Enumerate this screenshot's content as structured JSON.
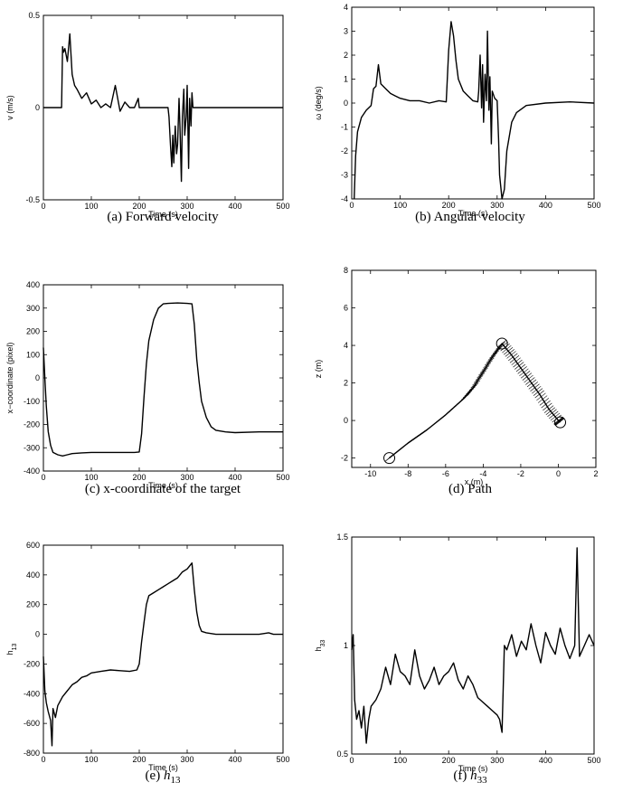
{
  "chart_data": [
    {
      "type": "line",
      "xlabel": "Time (s)",
      "ylabel": "v (m/s)",
      "xlim": [
        0,
        500
      ],
      "ylim": [
        -0.5,
        0.5
      ],
      "xticks": [
        0,
        100,
        200,
        300,
        400,
        500
      ],
      "yticks": [
        -0.5,
        0,
        0.5
      ],
      "x": [
        0,
        38,
        40,
        42,
        45,
        50,
        55,
        60,
        65,
        70,
        80,
        90,
        100,
        110,
        120,
        130,
        140,
        150,
        160,
        170,
        180,
        190,
        198,
        200,
        202,
        260,
        262,
        265,
        268,
        270,
        272,
        275,
        278,
        280,
        283,
        285,
        288,
        290,
        293,
        295,
        298,
        300,
        303,
        305,
        308,
        310,
        312,
        500
      ],
      "values": [
        0,
        0,
        0.33,
        0.3,
        0.32,
        0.25,
        0.4,
        0.18,
        0.12,
        0.1,
        0.05,
        0.08,
        0.02,
        0.04,
        0.0,
        0.02,
        0.0,
        0.12,
        -0.02,
        0.03,
        0.0,
        0.0,
        0.05,
        0.0,
        0,
        0,
        -0.05,
        -0.2,
        -0.32,
        -0.15,
        -0.3,
        -0.1,
        -0.25,
        -0.2,
        0.05,
        -0.1,
        -0.4,
        -0.05,
        0.1,
        -0.15,
        -0.05,
        0.12,
        -0.33,
        0.05,
        -0.1,
        0.08,
        0,
        0
      ],
      "caption": "(a) Forward velocity"
    },
    {
      "type": "line",
      "xlabel": "Time (s)",
      "ylabel": "ω (deg/s)",
      "xlim": [
        0,
        500
      ],
      "ylim": [
        -4,
        4
      ],
      "xticks": [
        0,
        100,
        200,
        300,
        400,
        500
      ],
      "yticks": [
        -4,
        -3,
        -2,
        -1,
        0,
        1,
        2,
        3,
        4
      ],
      "x": [
        5,
        8,
        12,
        20,
        30,
        40,
        45,
        50,
        55,
        60,
        70,
        80,
        90,
        100,
        120,
        140,
        160,
        180,
        195,
        200,
        205,
        210,
        215,
        220,
        230,
        240,
        250,
        260,
        262,
        265,
        268,
        270,
        272,
        275,
        278,
        280,
        283,
        285,
        288,
        290,
        295,
        300,
        303,
        305,
        310,
        315,
        320,
        330,
        340,
        360,
        400,
        450,
        500
      ],
      "values": [
        -4,
        -2.2,
        -1.2,
        -0.6,
        -0.3,
        -0.1,
        0.6,
        0.7,
        1.6,
        0.8,
        0.6,
        0.4,
        0.3,
        0.2,
        0.1,
        0.1,
        0.0,
        0.1,
        0.05,
        2.2,
        3.4,
        2.8,
        1.8,
        1.0,
        0.5,
        0.3,
        0.1,
        0.05,
        0.5,
        2.0,
        -0.2,
        1.6,
        -0.8,
        1.2,
        0.1,
        3.0,
        -0.3,
        1.1,
        -1.7,
        0.5,
        0.2,
        0.1,
        -1.5,
        -3.0,
        -4,
        -3.6,
        -2.0,
        -0.8,
        -0.4,
        -0.1,
        0.0,
        0.05,
        0.0
      ],
      "caption": "(b) Angular velocity"
    },
    {
      "type": "line",
      "xlabel": "Time (s)",
      "ylabel": "x−coordinate (pixel)",
      "xlim": [
        0,
        500
      ],
      "ylim": [
        -400,
        400
      ],
      "xticks": [
        0,
        100,
        200,
        300,
        400,
        500
      ],
      "yticks": [
        -400,
        -300,
        -200,
        -100,
        0,
        100,
        200,
        300,
        400
      ],
      "x": [
        0,
        3,
        6,
        10,
        15,
        20,
        30,
        40,
        50,
        60,
        80,
        100,
        130,
        160,
        190,
        200,
        205,
        210,
        215,
        220,
        230,
        240,
        250,
        260,
        280,
        300,
        310,
        315,
        320,
        325,
        330,
        340,
        350,
        360,
        380,
        400,
        450,
        500
      ],
      "values": [
        130,
        0,
        -120,
        -230,
        -290,
        -320,
        -330,
        -335,
        -330,
        -325,
        -322,
        -320,
        -320,
        -320,
        -320,
        -318,
        -240,
        -80,
        60,
        160,
        250,
        300,
        318,
        320,
        322,
        320,
        318,
        230,
        80,
        -20,
        -100,
        -170,
        -210,
        -225,
        -232,
        -235,
        -232,
        -232
      ],
      "caption": "(c) x-coordinate of the target"
    },
    {
      "type": "line",
      "xlabel": "x (m)",
      "ylabel": "z (m)",
      "xlim": [
        -11,
        2
      ],
      "ylim": [
        -2.5,
        8
      ],
      "xticks": [
        -10,
        -8,
        -6,
        -4,
        -2,
        0,
        2
      ],
      "yticks": [
        -2,
        0,
        2,
        4,
        6,
        8
      ],
      "x": [
        -9,
        -8.5,
        -8,
        -7,
        -6,
        -5,
        -4.5,
        -4,
        -3.5,
        -3,
        -2.5,
        -2,
        -1.5,
        -1,
        -0.5,
        0,
        0.1
      ],
      "values": [
        -2,
        -1.6,
        -1.2,
        -0.5,
        0.3,
        1.2,
        1.8,
        2.6,
        3.4,
        4.1,
        3.5,
        2.8,
        2.1,
        1.4,
        0.6,
        0.0,
        -0.1
      ],
      "caption": "(d) Path"
    },
    {
      "type": "line",
      "xlabel": "Time (s)",
      "ylabel": "h13",
      "xlim": [
        0,
        500
      ],
      "ylim": [
        -800,
        600
      ],
      "xticks": [
        0,
        100,
        200,
        300,
        400,
        500
      ],
      "yticks": [
        -800,
        -600,
        -400,
        -200,
        0,
        200,
        400,
        600
      ],
      "x": [
        0,
        3,
        6,
        10,
        15,
        18,
        20,
        25,
        30,
        40,
        50,
        60,
        70,
        80,
        90,
        100,
        120,
        140,
        160,
        180,
        195,
        200,
        205,
        210,
        215,
        220,
        230,
        240,
        250,
        260,
        270,
        280,
        290,
        300,
        305,
        310,
        315,
        320,
        325,
        330,
        340,
        360,
        400,
        450,
        470,
        480,
        500
      ],
      "values": [
        -150,
        -380,
        -460,
        -520,
        -580,
        -750,
        -500,
        -560,
        -480,
        -420,
        -380,
        -340,
        -320,
        -290,
        -280,
        -260,
        -250,
        -240,
        -245,
        -250,
        -240,
        -200,
        -50,
        80,
        200,
        260,
        280,
        300,
        320,
        340,
        360,
        380,
        420,
        440,
        460,
        480,
        300,
        150,
        60,
        20,
        10,
        0,
        0,
        0,
        10,
        0,
        0
      ],
      "caption": "(e) h13"
    },
    {
      "type": "line",
      "xlabel": "Time (s)",
      "ylabel": "h33",
      "xlim": [
        0,
        500
      ],
      "ylim": [
        0.5,
        1.5
      ],
      "xticks": [
        0,
        100,
        200,
        300,
        400,
        500
      ],
      "yticks": [
        0.5,
        1,
        1.5
      ],
      "x": [
        0,
        3,
        6,
        10,
        15,
        20,
        25,
        30,
        35,
        40,
        50,
        60,
        70,
        80,
        90,
        100,
        110,
        120,
        130,
        140,
        150,
        160,
        170,
        180,
        190,
        200,
        210,
        220,
        230,
        240,
        250,
        260,
        270,
        280,
        290,
        300,
        305,
        310,
        315,
        320,
        330,
        340,
        350,
        360,
        370,
        380,
        390,
        400,
        410,
        420,
        430,
        440,
        450,
        460,
        465,
        470,
        480,
        490,
        500
      ],
      "values": [
        0.98,
        1.05,
        0.75,
        0.66,
        0.7,
        0.62,
        0.72,
        0.55,
        0.66,
        0.72,
        0.75,
        0.8,
        0.9,
        0.82,
        0.96,
        0.88,
        0.86,
        0.82,
        0.98,
        0.86,
        0.8,
        0.84,
        0.9,
        0.82,
        0.86,
        0.88,
        0.92,
        0.84,
        0.8,
        0.86,
        0.82,
        0.76,
        0.74,
        0.72,
        0.7,
        0.68,
        0.66,
        0.6,
        1.0,
        0.98,
        1.05,
        0.95,
        1.02,
        0.98,
        1.1,
        1.0,
        0.92,
        1.06,
        1.0,
        0.96,
        1.08,
        1.0,
        0.94,
        1.0,
        1.45,
        0.95,
        1.0,
        1.05,
        1.0
      ],
      "caption": "(f) h33"
    }
  ]
}
